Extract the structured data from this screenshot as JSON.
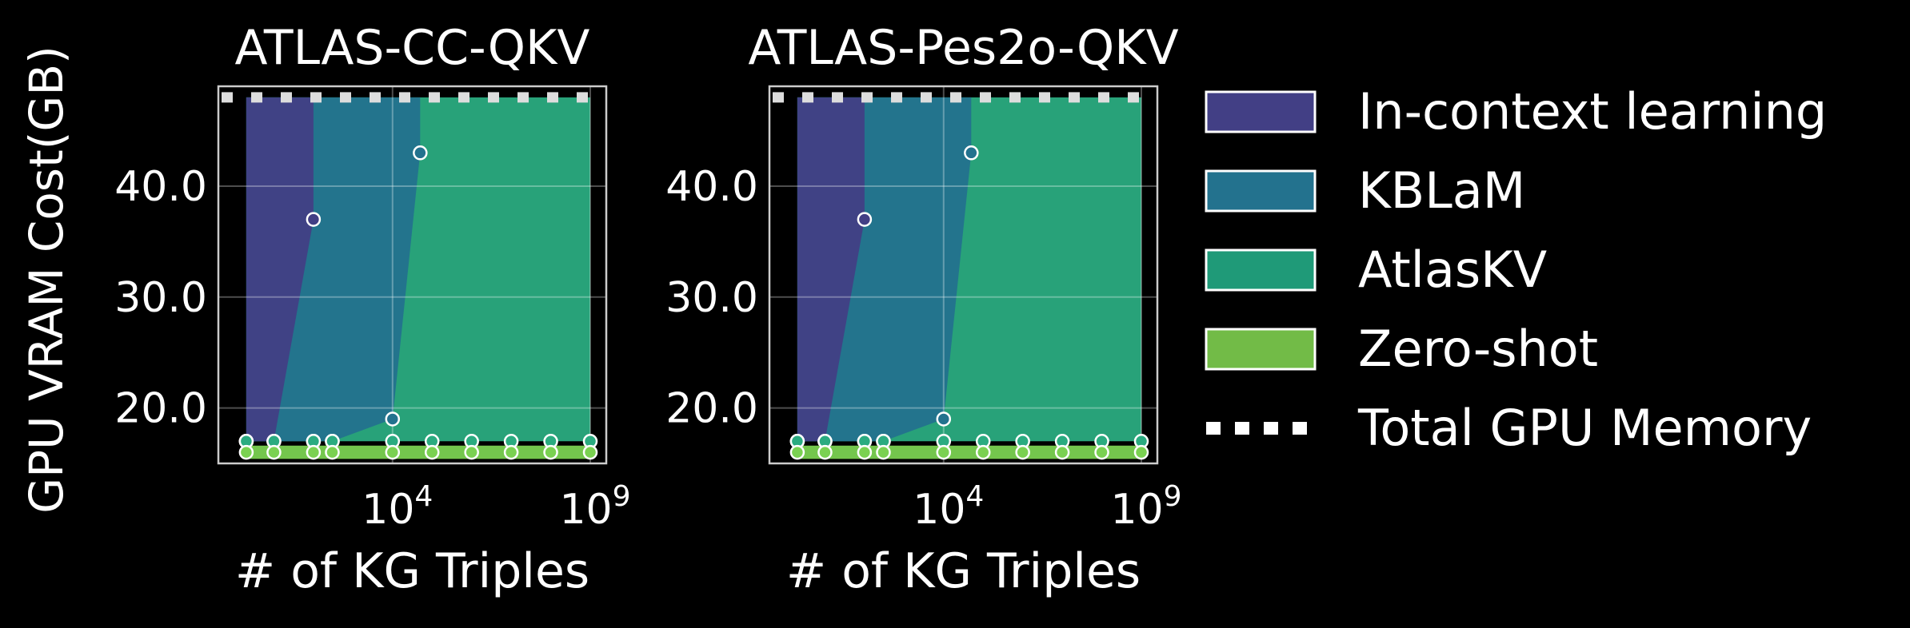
{
  "figure": {
    "ylabel": "GPU VRAM Cost(GB)",
    "background": "#000000"
  },
  "chart_data": [
    {
      "type": "area",
      "title": "ATLAS-CC-QKV",
      "xlabel": "# of KG Triples",
      "ylabel": "GPU VRAM Cost(GB)",
      "x_scale": "log",
      "xlim": [
        1,
        1000000000
      ],
      "ylim": [
        15,
        49
      ],
      "x_ticks": [
        10000,
        1000000000
      ],
      "x_tick_labels": [
        {
          "base": "10",
          "exp": "4"
        },
        {
          "base": "10",
          "exp": "9"
        }
      ],
      "y_ticks": [
        20,
        30,
        40
      ],
      "y_tick_labels": [
        "20.0",
        "30.0",
        "40.0"
      ],
      "grid": true,
      "series": [
        {
          "name": "In-context learning",
          "color": "#423f85",
          "x": [
            2,
            10,
            100
          ],
          "values": [
            17,
            17,
            37
          ]
        },
        {
          "name": "KBLaM",
          "color": "#23728e",
          "x": [
            2,
            10,
            100,
            300,
            10000,
            50000
          ],
          "values": [
            17,
            17,
            17,
            17,
            19,
            43
          ]
        },
        {
          "name": "AtlasKV",
          "color": "#2aab80",
          "x": [
            2,
            10,
            100,
            300,
            10000,
            100000,
            1000000,
            10000000,
            100000000,
            1000000000
          ],
          "values": [
            17,
            17,
            17,
            17,
            17,
            17,
            17,
            17,
            17,
            17
          ]
        },
        {
          "name": "Zero-shot",
          "color": "#7ad151",
          "x": [
            2,
            10,
            100,
            300,
            10000,
            100000,
            1000000,
            10000000,
            100000000,
            1000000000
          ],
          "values": [
            16,
            16,
            16,
            16,
            16,
            16,
            16,
            16,
            16,
            16
          ]
        }
      ],
      "total_gpu_memory": 48
    },
    {
      "type": "area",
      "title": "ATLAS-Pes2o-QKV",
      "xlabel": "# of KG Triples",
      "ylabel": "GPU VRAM Cost(GB)",
      "x_scale": "log",
      "xlim": [
        1,
        1000000000
      ],
      "ylim": [
        15,
        49
      ],
      "x_ticks": [
        10000,
        1000000000
      ],
      "x_tick_labels": [
        {
          "base": "10",
          "exp": "4"
        },
        {
          "base": "10",
          "exp": "9"
        }
      ],
      "y_ticks": [
        20,
        30,
        40
      ],
      "y_tick_labels": [
        "20.0",
        "30.0",
        "40.0"
      ],
      "grid": true,
      "series": [
        {
          "name": "In-context learning",
          "color": "#423f85",
          "x": [
            2,
            10,
            100
          ],
          "values": [
            17,
            17,
            37
          ]
        },
        {
          "name": "KBLaM",
          "color": "#23728e",
          "x": [
            2,
            10,
            100,
            300,
            10000,
            50000
          ],
          "values": [
            17,
            17,
            17,
            17,
            19,
            43
          ]
        },
        {
          "name": "AtlasKV",
          "color": "#2aab80",
          "x": [
            2,
            10,
            100,
            300,
            10000,
            100000,
            1000000,
            10000000,
            100000000,
            1000000000
          ],
          "values": [
            17,
            17,
            17,
            17,
            17,
            17,
            17,
            17,
            17,
            17
          ]
        },
        {
          "name": "Zero-shot",
          "color": "#7ad151",
          "x": [
            2,
            10,
            100,
            300,
            10000,
            100000,
            1000000,
            10000000,
            100000000,
            1000000000
          ],
          "values": [
            16,
            16,
            16,
            16,
            16,
            16,
            16,
            16,
            16,
            16
          ]
        }
      ],
      "total_gpu_memory": 48
    }
  ],
  "legend": {
    "position": "right",
    "items": [
      {
        "label": "In-context learning",
        "color": "#423f85",
        "kind": "patch"
      },
      {
        "label": "KBLaM",
        "color": "#23728e",
        "kind": "patch"
      },
      {
        "label": "AtlasKV",
        "color": "#1f9a78",
        "kind": "patch"
      },
      {
        "label": "Zero-shot",
        "color": "#72bb47",
        "kind": "patch"
      },
      {
        "label": "Total GPU Memory",
        "color": "#ffffff",
        "kind": "dotted-line"
      }
    ]
  }
}
